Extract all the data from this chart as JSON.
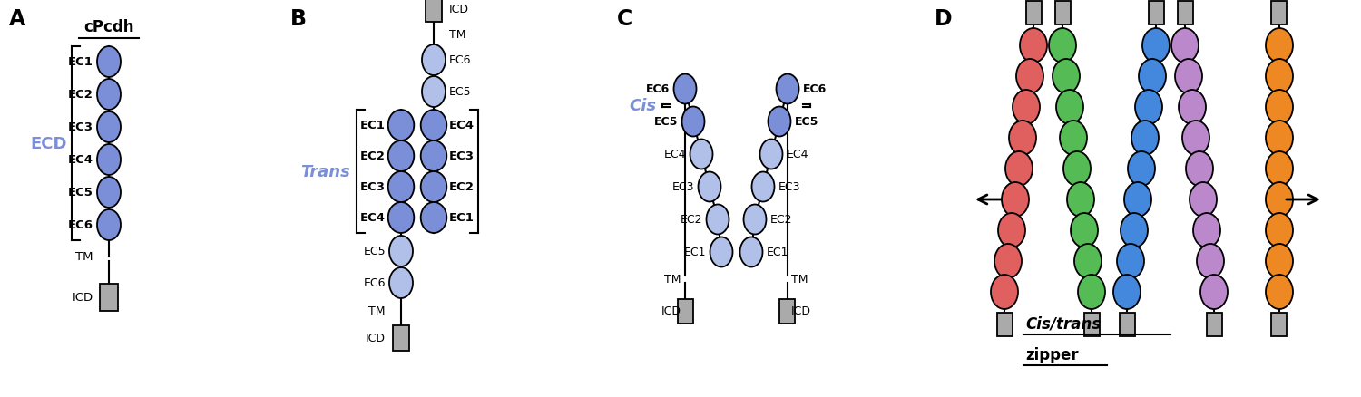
{
  "figsize": [
    15.0,
    4.39
  ],
  "dpi": 100,
  "bg_color": "#ffffff",
  "blue_dark": "#7b8fd8",
  "blue_light": "#b0c0e8",
  "gray_box": "#aaaaaa",
  "title_A": "cPcdh",
  "label_ECD": "ECD",
  "label_Trans": "Trans",
  "label_Cis": "Cis",
  "label_cis_trans_line1": "Cis/trans",
  "label_cis_trans_line2": "zipper",
  "color_red": "#e06060",
  "color_green": "#55bb55",
  "color_blue": "#4488dd",
  "color_purple": "#bb88cc",
  "color_orange": "#ee8822"
}
